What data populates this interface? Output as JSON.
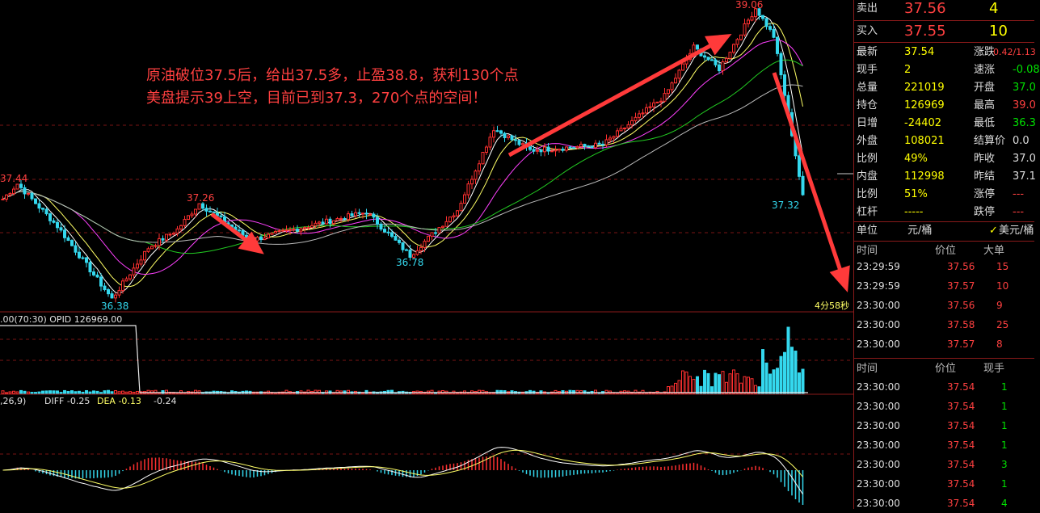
{
  "chart_data": {
    "type": "candlestick",
    "annotation": {
      "line1": "原油破位37.5后，给出37.5多，止盈38.8，获利130个点",
      "line2": "美盘提示39上空，目前已到37.3，270个点的空间！"
    },
    "price_labels": [
      {
        "text": "37.44",
        "value": 37.44
      },
      {
        "text": "36.38",
        "value": 36.38
      },
      {
        "text": "37.26",
        "value": 37.26
      },
      {
        "text": "36.78",
        "value": 36.78
      },
      {
        "text": "39.06",
        "value": 39.06
      },
      {
        "text": "37.32",
        "value": 37.32
      }
    ],
    "countdown": "4分58秒",
    "volume_label": ".00(70:30)  OPID 126969.00",
    "macd_label": ",26,9)",
    "macd_diff": "DIFF -0.25",
    "macd_dea": "DEA -0.13",
    "macd_value": "-0.24",
    "key_points": [
      {
        "i": 0,
        "v": 37.3
      },
      {
        "i": 4,
        "v": 37.44
      },
      {
        "i": 15,
        "v": 37.05
      },
      {
        "i": 30,
        "v": 36.38
      },
      {
        "i": 40,
        "v": 36.85
      },
      {
        "i": 48,
        "v": 37.02
      },
      {
        "i": 54,
        "v": 37.26
      },
      {
        "i": 68,
        "v": 36.92
      },
      {
        "i": 80,
        "v": 37.02
      },
      {
        "i": 100,
        "v": 37.18
      },
      {
        "i": 112,
        "v": 36.78
      },
      {
        "i": 125,
        "v": 37.2
      },
      {
        "i": 135,
        "v": 37.95
      },
      {
        "i": 145,
        "v": 37.75
      },
      {
        "i": 165,
        "v": 37.8
      },
      {
        "i": 182,
        "v": 38.25
      },
      {
        "i": 190,
        "v": 38.7
      },
      {
        "i": 197,
        "v": 38.5
      },
      {
        "i": 207,
        "v": 39.06
      },
      {
        "i": 212,
        "v": 38.8
      },
      {
        "i": 217,
        "v": 37.9
      },
      {
        "i": 220,
        "v": 37.32
      }
    ]
  },
  "panel": {
    "sell": {
      "label": "卖出",
      "price": "37.56",
      "qty": "4"
    },
    "buy": {
      "label": "买入",
      "price": "37.55",
      "qty": "10"
    },
    "stats": [
      {
        "l1": "最新",
        "v1": "37.54",
        "l2": "涨跌",
        "v2": "0.42/1.13"
      },
      {
        "l1": "现手",
        "v1": "2",
        "l2": "速涨",
        "v2": "-0.08"
      },
      {
        "l1": "总量",
        "v1": "221019",
        "l2": "开盘",
        "v2": "37.0"
      },
      {
        "l1": "持仓",
        "v1": "126969",
        "l2": "最高",
        "v2": "39.0"
      },
      {
        "l1": "日增",
        "v1": "-24402",
        "l2": "最低",
        "v2": "36.3"
      },
      {
        "l1": "外盘",
        "v1": "108021",
        "l2": "结算价",
        "v2": "0.0"
      },
      {
        "l1": "比例",
        "v1": "49%",
        "l2": "昨收",
        "v2": "37.0"
      },
      {
        "l1": "内盘",
        "v1": "112998",
        "l2": "昨结",
        "v2": "37.1"
      },
      {
        "l1": "比例",
        "v1": "51%",
        "l2": "涨停",
        "v2": "---"
      },
      {
        "l1": "杠杆",
        "v1": "-----",
        "l2": "跌停",
        "v2": "---"
      }
    ],
    "unit": {
      "label": "单位",
      "value": "元/桶",
      "alt": "美元/桶"
    },
    "big_header": {
      "time": "时间",
      "price": "价位",
      "qty": "大单"
    },
    "big_orders": [
      {
        "time": "23:29:59",
        "price": "37.56",
        "qty": "15"
      },
      {
        "time": "23:29:59",
        "price": "37.57",
        "qty": "10"
      },
      {
        "time": "23:30:00",
        "price": "37.56",
        "qty": "9"
      },
      {
        "time": "23:30:00",
        "price": "37.58",
        "qty": "25"
      },
      {
        "time": "23:30:00",
        "price": "37.57",
        "qty": "8"
      }
    ],
    "tick_header": {
      "time": "时间",
      "price": "价位",
      "qty": "现手"
    },
    "ticks": [
      {
        "time": "23:30:00",
        "price": "37.54",
        "qty": "1"
      },
      {
        "time": "23:30:00",
        "price": "37.54",
        "qty": "1"
      },
      {
        "time": "23:30:00",
        "price": "37.54",
        "qty": "1"
      },
      {
        "time": "23:30:00",
        "price": "37.54",
        "qty": "1"
      },
      {
        "time": "23:30:00",
        "price": "37.54",
        "qty": "3"
      },
      {
        "time": "23:30:00",
        "price": "37.54",
        "qty": "1"
      },
      {
        "time": "23:30:00",
        "price": "37.54",
        "qty": "4"
      }
    ]
  }
}
